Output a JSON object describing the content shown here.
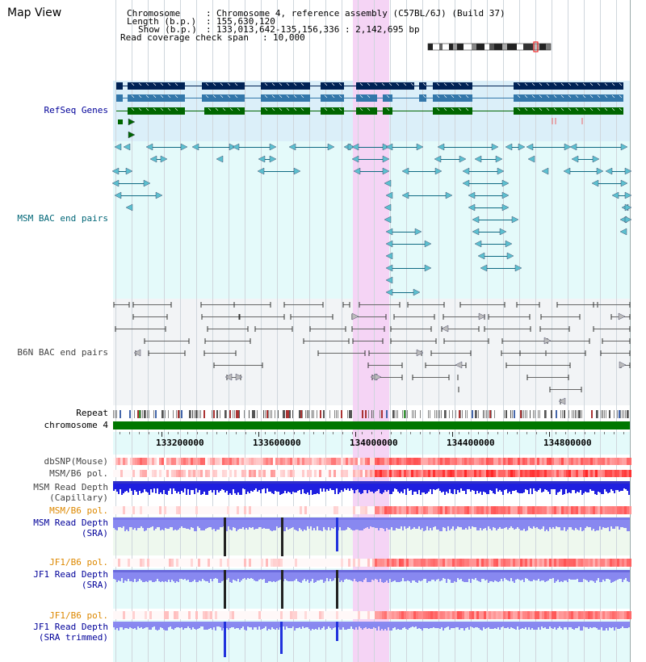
{
  "title": "Map View",
  "info": {
    "chromosome_key": "Chromosome",
    "chromosome_val": "Chromosome 4, reference assembly (C57BL/6J) (Build 37)",
    "length_key": "Length (b.p.)",
    "length_val": "155,630,120",
    "show_key": "Show (b.p.)",
    "show_val": "133,013,642-135,156,336 : 2,142,695 bp",
    "span_key": "Read coverage check span",
    "span_val": "10,000"
  },
  "tracks": {
    "refseq": "RefSeq Genes",
    "msm_bac": "MSM BAC end pairs",
    "b6n_bac": "B6N BAC end pairs",
    "repeat": "Repeat",
    "chromosome": "chromosome 4",
    "dbsnp": "dbSNP(Mouse)",
    "msm_b6_pol": "MSM/B6 pol.",
    "msm_depth_cap_1": "MSM Read Depth",
    "msm_depth_cap_2": "(Capillary)",
    "msm_b6_pol_sra": "MSM/B6 pol.",
    "msm_depth_sra_1": "MSM Read Depth",
    "msm_depth_sra_2": "(SRA)",
    "jf1_b6_pol": "JF1/B6 pol.",
    "jf1_depth_sra_1": "JF1 Read Depth",
    "jf1_depth_sra_2": "(SRA)",
    "jf1_b6_pol_2": "JF1/B6 pol.",
    "jf1_depth_trim_1": "JF1 Read Depth",
    "jf1_depth_trim_2": "(SRA trimmed)"
  },
  "ruler": {
    "ticks": [
      "133200000",
      "133600000",
      "134000000",
      "134400000",
      "134800000"
    ]
  },
  "colors": {
    "navy_label": "#000099",
    "teal_label": "#006677",
    "gray_label": "#444444",
    "orange_label": "#dd8800",
    "gene_dark": "#002255",
    "gene_mid": "#3377aa",
    "gene_green": "#006600",
    "chromosome_bar": "#007700",
    "highlight": "#f5d4f5",
    "depth_capillary": "#1f1fe0",
    "depth_sra": "#8888f0"
  }
}
